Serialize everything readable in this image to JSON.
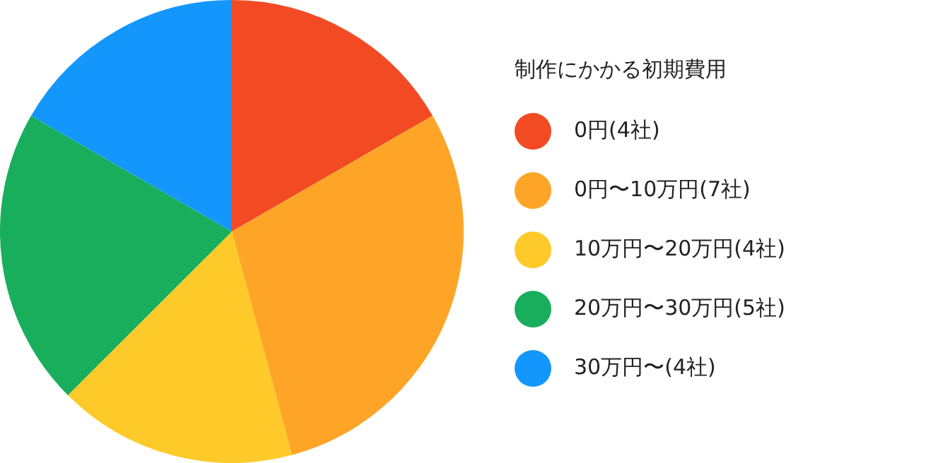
{
  "chart_data": {
    "type": "pie",
    "legend_title": "制作にかかる初期費用",
    "legend": "right",
    "categories": [
      "0円(4社)",
      "0円〜10万円(7社)",
      "10万円〜20万円(4社)",
      "20万円〜30万円(5社)",
      "30万円〜(4社)"
    ],
    "values": [
      4,
      7,
      4,
      5,
      4
    ],
    "colors": [
      "#f24b24",
      "#fea527",
      "#fdca2a",
      "#18ae5b",
      "#1497fc"
    ]
  }
}
